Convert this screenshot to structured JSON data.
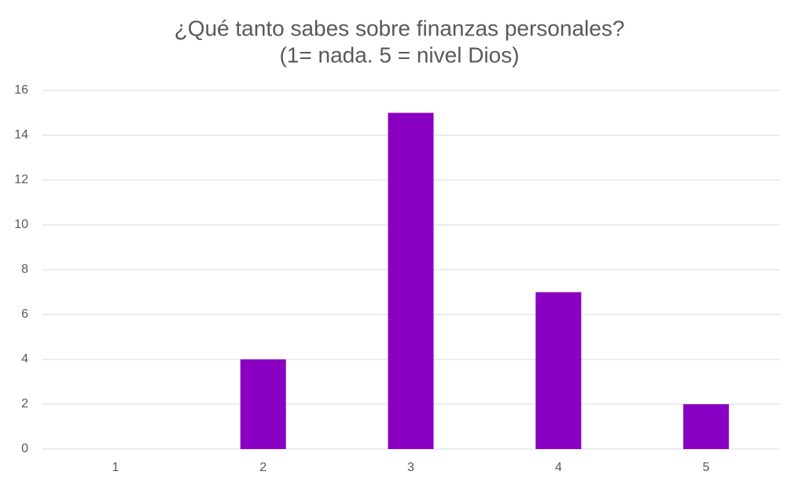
{
  "chart_data": {
    "type": "bar",
    "title": "¿Qué tanto sabes sobre finanzas personales?",
    "subtitle": "(1= nada. 5 = nivel Dios)",
    "categories": [
      "1",
      "2",
      "3",
      "4",
      "5"
    ],
    "values": [
      0,
      4,
      15,
      7,
      2
    ],
    "color": "#8a00c2",
    "ylim": [
      0,
      16
    ],
    "yticks": [
      0,
      2,
      4,
      6,
      8,
      10,
      12,
      14,
      16
    ],
    "grid": true
  }
}
